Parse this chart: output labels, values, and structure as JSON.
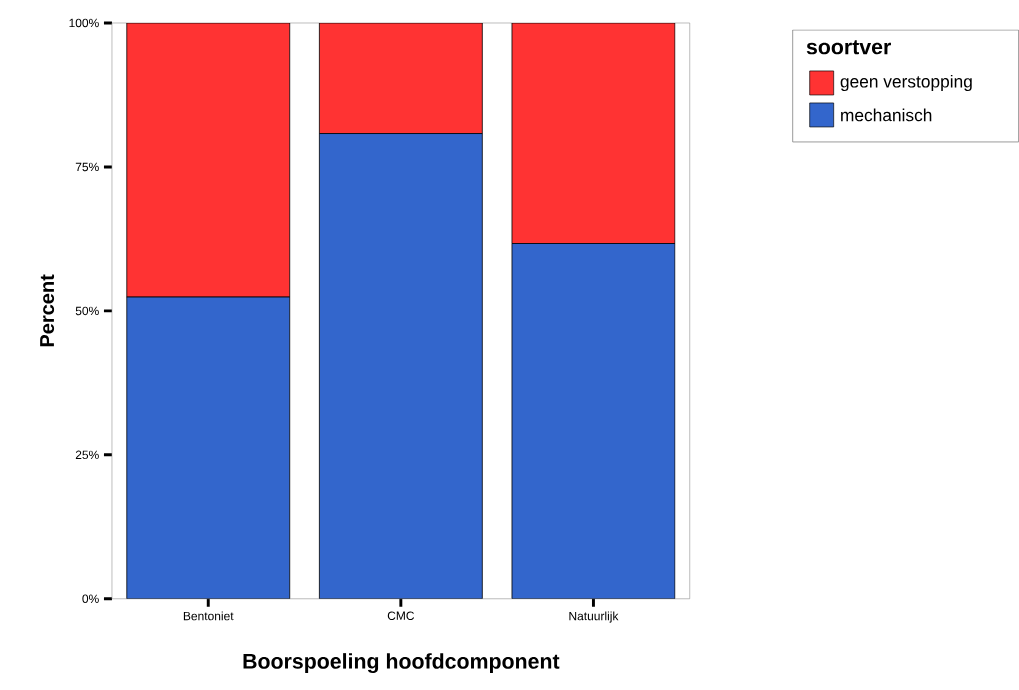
{
  "chart_data": {
    "type": "bar",
    "stacked": true,
    "xlabel": "Boorspoeling hoofdcomponent",
    "ylabel": "Percent",
    "legend_title": "soortver",
    "legend": "top right",
    "categories": [
      "Bentoniet",
      "CMC",
      "Natuurlijk"
    ],
    "series": [
      {
        "name": "mechanisch",
        "color": "#3366cc",
        "values": [
          52.4,
          80.8,
          61.7
        ]
      },
      {
        "name": "geen verstopping",
        "color": "#ff3333",
        "values": [
          47.6,
          19.2,
          38.3
        ]
      }
    ],
    "ylim": [
      0,
      100
    ],
    "yticks": [
      {
        "value": 0,
        "label": "0%"
      },
      {
        "value": 25,
        "label": "25%"
      },
      {
        "value": 50,
        "label": "50%"
      },
      {
        "value": 75,
        "label": "75%"
      },
      {
        "value": 100,
        "label": "100%"
      }
    ]
  }
}
